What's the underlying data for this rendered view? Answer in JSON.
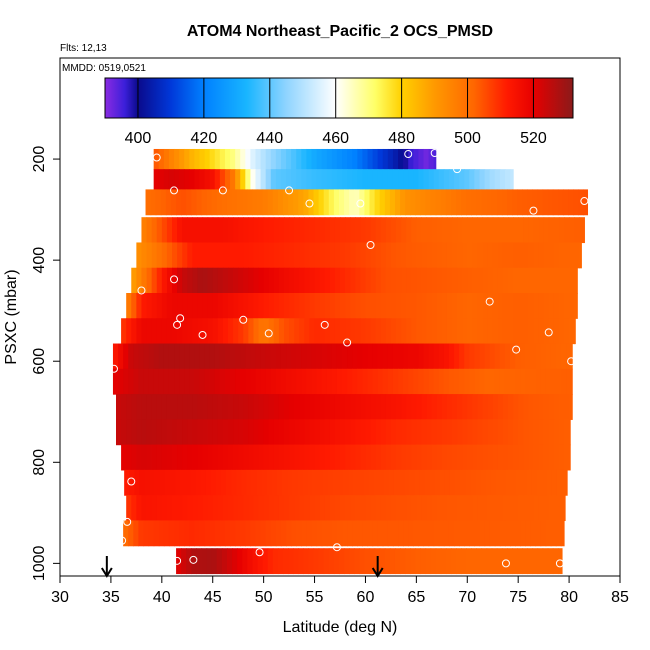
{
  "chart_data": {
    "type": "heatmap",
    "title": "ATOM4 Northeast_Pacific_2 OCS_PMSD",
    "flights_label": "Flts: 12,13",
    "dates_label": "MMDD: 0519,0521",
    "xlabel": "Latitude (deg N)",
    "ylabel": "PSXC (mbar)",
    "xlim": [
      30,
      85
    ],
    "ylim": [
      1025,
      0
    ],
    "xticks": [
      "30",
      "35",
      "40",
      "45",
      "50",
      "55",
      "60",
      "65",
      "70",
      "75",
      "80",
      "85"
    ],
    "yticks": [
      "200",
      "400",
      "600",
      "800",
      "1000"
    ],
    "colorbar": {
      "range": [
        390,
        532
      ],
      "ticks": [
        "400",
        "420",
        "440",
        "460",
        "480",
        "500",
        "520"
      ],
      "stops": [
        [
          390,
          "#8a2be2"
        ],
        [
          396,
          "#3b1fd9"
        ],
        [
          400,
          "#0a0a8c"
        ],
        [
          410,
          "#0038d9"
        ],
        [
          420,
          "#0080ff"
        ],
        [
          433,
          "#19b5ff"
        ],
        [
          445,
          "#8fd4ff"
        ],
        [
          460,
          "#ffffff"
        ],
        [
          472,
          "#ffff66"
        ],
        [
          480,
          "#ffd000"
        ],
        [
          490,
          "#ff9900"
        ],
        [
          502,
          "#ff6600"
        ],
        [
          512,
          "#ff1a00"
        ],
        [
          520,
          "#e60000"
        ],
        [
          532,
          "#8b1a1a"
        ]
      ]
    },
    "bands": [
      {
        "p": 200,
        "half": 20,
        "x": [
          39.2,
          66.9
        ],
        "vals": [
          [
            39.2,
            505
          ],
          [
            41,
            495
          ],
          [
            43,
            485
          ],
          [
            45,
            478
          ],
          [
            47,
            470
          ],
          [
            49,
            455
          ],
          [
            51,
            445
          ],
          [
            53,
            438
          ],
          [
            55,
            430
          ],
          [
            57,
            425
          ],
          [
            59,
            420
          ],
          [
            61,
            412
          ],
          [
            63,
            404
          ],
          [
            64.5,
            396
          ],
          [
            66,
            392
          ],
          [
            66.9,
            395
          ]
        ]
      },
      {
        "p": 240,
        "half": 20,
        "x": [
          39.2,
          74.5
        ],
        "vals": [
          [
            39.2,
            520
          ],
          [
            41,
            522
          ],
          [
            43,
            520
          ],
          [
            45,
            515
          ],
          [
            47,
            498
          ],
          [
            49,
            460
          ],
          [
            51,
            440
          ],
          [
            55,
            436
          ],
          [
            60,
            433
          ],
          [
            65,
            433
          ],
          [
            70,
            440
          ],
          [
            72.5,
            448
          ],
          [
            74.5,
            452
          ]
        ]
      },
      {
        "p": 285,
        "half": 25,
        "x": [
          38.4,
          81.8
        ],
        "vals": [
          [
            38.4,
            500
          ],
          [
            42,
            505
          ],
          [
            46,
            500
          ],
          [
            50,
            497
          ],
          [
            54,
            488
          ],
          [
            57,
            472
          ],
          [
            59,
            465
          ],
          [
            61,
            478
          ],
          [
            64,
            492
          ],
          [
            70,
            500
          ],
          [
            75,
            503
          ],
          [
            81.8,
            505
          ]
        ]
      },
      {
        "p": 340,
        "half": 25,
        "x": [
          38.0,
          81.5
        ],
        "vals": [
          [
            38.0,
            495
          ],
          [
            40,
            505
          ],
          [
            42,
            515
          ],
          [
            46,
            515
          ],
          [
            50,
            512
          ],
          [
            55,
            510
          ],
          [
            60,
            508
          ],
          [
            65,
            503
          ],
          [
            70,
            502
          ],
          [
            75,
            502
          ],
          [
            81.5,
            503
          ]
        ]
      },
      {
        "p": 390,
        "half": 25,
        "x": [
          37.5,
          81.2
        ],
        "vals": [
          [
            37.5,
            492
          ],
          [
            40,
            500
          ],
          [
            43,
            512
          ],
          [
            48,
            512
          ],
          [
            53,
            510
          ],
          [
            58,
            508
          ],
          [
            63,
            504
          ],
          [
            70,
            502
          ],
          [
            75,
            503
          ],
          [
            81.2,
            502
          ]
        ]
      },
      {
        "p": 440,
        "half": 25,
        "x": [
          37.0,
          80.8
        ],
        "vals": [
          [
            37.0,
            488
          ],
          [
            38.5,
            500
          ],
          [
            40,
            512
          ],
          [
            42,
            524
          ],
          [
            44,
            528
          ],
          [
            47,
            524
          ],
          [
            52,
            517
          ],
          [
            58,
            510
          ],
          [
            62,
            505
          ],
          [
            70,
            503
          ],
          [
            75,
            502
          ],
          [
            80.8,
            502
          ]
        ]
      },
      {
        "p": 490,
        "half": 25,
        "x": [
          36.5,
          80.8
        ],
        "vals": [
          [
            36.5,
            495
          ],
          [
            38,
            512
          ],
          [
            41,
            518
          ],
          [
            45,
            518
          ],
          [
            50,
            512
          ],
          [
            55,
            508
          ],
          [
            60,
            505
          ],
          [
            65,
            504
          ],
          [
            70,
            502
          ],
          [
            75,
            503
          ],
          [
            80.8,
            502
          ]
        ]
      },
      {
        "p": 540,
        "half": 25,
        "x": [
          36.0,
          80.6
        ],
        "vals": [
          [
            36.0,
            508
          ],
          [
            38,
            518
          ],
          [
            41,
            518
          ],
          [
            45,
            515
          ],
          [
            48,
            508
          ],
          [
            50,
            498
          ],
          [
            52,
            505
          ],
          [
            55,
            510
          ],
          [
            60,
            508
          ],
          [
            65,
            504
          ],
          [
            70,
            502
          ],
          [
            75,
            503
          ],
          [
            80.6,
            502
          ]
        ]
      },
      {
        "p": 590,
        "half": 25,
        "x": [
          35.2,
          80.3
        ],
        "vals": [
          [
            35.2,
            512
          ],
          [
            37,
            524
          ],
          [
            40,
            527
          ],
          [
            45,
            527
          ],
          [
            50,
            524
          ],
          [
            55,
            522
          ],
          [
            60,
            520
          ],
          [
            65,
            518
          ],
          [
            68,
            514
          ],
          [
            70,
            508
          ],
          [
            75,
            503
          ],
          [
            80.3,
            502
          ]
        ]
      },
      {
        "p": 640,
        "half": 25,
        "x": [
          35.2,
          80.3
        ],
        "vals": [
          [
            35.2,
            520
          ],
          [
            38,
            524
          ],
          [
            43,
            524
          ],
          [
            48,
            520
          ],
          [
            53,
            516
          ],
          [
            58,
            512
          ],
          [
            63,
            508
          ],
          [
            68,
            504
          ],
          [
            72,
            502
          ],
          [
            80.3,
            503
          ]
        ]
      },
      {
        "p": 690,
        "half": 25,
        "x": [
          35.5,
          80.3
        ],
        "vals": [
          [
            35.5,
            524
          ],
          [
            38,
            526
          ],
          [
            43,
            526
          ],
          [
            48,
            524
          ],
          [
            53,
            520
          ],
          [
            58,
            517
          ],
          [
            63,
            514
          ],
          [
            68,
            510
          ],
          [
            72,
            507
          ],
          [
            76,
            504
          ],
          [
            80.3,
            503
          ]
        ]
      },
      {
        "p": 740,
        "half": 25,
        "x": [
          35.5,
          80.1
        ],
        "vals": [
          [
            35.5,
            524
          ],
          [
            38,
            526
          ],
          [
            43,
            524
          ],
          [
            48,
            522
          ],
          [
            53,
            518
          ],
          [
            58,
            514
          ],
          [
            63,
            510
          ],
          [
            68,
            508
          ],
          [
            72,
            506
          ],
          [
            76,
            504
          ],
          [
            80.1,
            503
          ]
        ]
      },
      {
        "p": 790,
        "half": 25,
        "x": [
          36.0,
          80.1
        ],
        "vals": [
          [
            36.0,
            520
          ],
          [
            38,
            522
          ],
          [
            43,
            520
          ],
          [
            48,
            517
          ],
          [
            53,
            514
          ],
          [
            58,
            511
          ],
          [
            63,
            508
          ],
          [
            68,
            506
          ],
          [
            72,
            505
          ],
          [
            80.1,
            503
          ]
        ]
      },
      {
        "p": 840,
        "half": 25,
        "x": [
          36.3,
          79.8
        ],
        "vals": [
          [
            36.3,
            512
          ],
          [
            38,
            515
          ],
          [
            43,
            513
          ],
          [
            48,
            510
          ],
          [
            53,
            508
          ],
          [
            58,
            507
          ],
          [
            63,
            506
          ],
          [
            68,
            505
          ],
          [
            72,
            504
          ],
          [
            79.8,
            503
          ]
        ]
      },
      {
        "p": 890,
        "half": 25,
        "x": [
          36.5,
          79.6
        ],
        "vals": [
          [
            36.5,
            508
          ],
          [
            38,
            514
          ],
          [
            43,
            512
          ],
          [
            48,
            510
          ],
          [
            53,
            508
          ],
          [
            58,
            506
          ],
          [
            63,
            505
          ],
          [
            68,
            504
          ],
          [
            79.6,
            503
          ]
        ]
      },
      {
        "p": 940,
        "half": 25,
        "x": [
          36.2,
          79.5
        ],
        "vals": [
          [
            36.2,
            500
          ],
          [
            38,
            508
          ],
          [
            43,
            510
          ],
          [
            48,
            508
          ],
          [
            53,
            505
          ],
          [
            58,
            504
          ],
          [
            63,
            504
          ],
          [
            79.5,
            503
          ]
        ]
      },
      {
        "p": 995,
        "half": 25,
        "x": [
          41.4,
          79.3
        ],
        "vals": [
          [
            41.4,
            520
          ],
          [
            43,
            527
          ],
          [
            45,
            528
          ],
          [
            47,
            522
          ],
          [
            49,
            515
          ],
          [
            51,
            510
          ],
          [
            55,
            508
          ],
          [
            60,
            505
          ],
          [
            65,
            503
          ],
          [
            70,
            502
          ],
          [
            79.3,
            502
          ]
        ]
      }
    ],
    "samples": [
      [
        39.5,
        197
      ],
      [
        41.2,
        262
      ],
      [
        46,
        262
      ],
      [
        52.5,
        262
      ],
      [
        64.2,
        190
      ],
      [
        66.8,
        188
      ],
      [
        69,
        220
      ],
      [
        54.5,
        288
      ],
      [
        59.5,
        288
      ],
      [
        76.5,
        302
      ],
      [
        81.5,
        283
      ],
      [
        60.5,
        370
      ],
      [
        41.2,
        438
      ],
      [
        38,
        460
      ],
      [
        72.2,
        482
      ],
      [
        41.8,
        515
      ],
      [
        41.5,
        528
      ],
      [
        44,
        548
      ],
      [
        48,
        518
      ],
      [
        50.5,
        545
      ],
      [
        56,
        528
      ],
      [
        58.2,
        563
      ],
      [
        78,
        543
      ],
      [
        74.8,
        577
      ],
      [
        80.2,
        600
      ],
      [
        35.3,
        615
      ],
      [
        37,
        838
      ],
      [
        36.6,
        918
      ],
      [
        36.1,
        955
      ],
      [
        41.5,
        995
      ],
      [
        43.1,
        993
      ],
      [
        49.6,
        978
      ],
      [
        57.2,
        968
      ],
      [
        73.8,
        1000
      ],
      [
        79.1,
        1000
      ]
    ],
    "markers": [
      34.6,
      61.2
    ]
  }
}
